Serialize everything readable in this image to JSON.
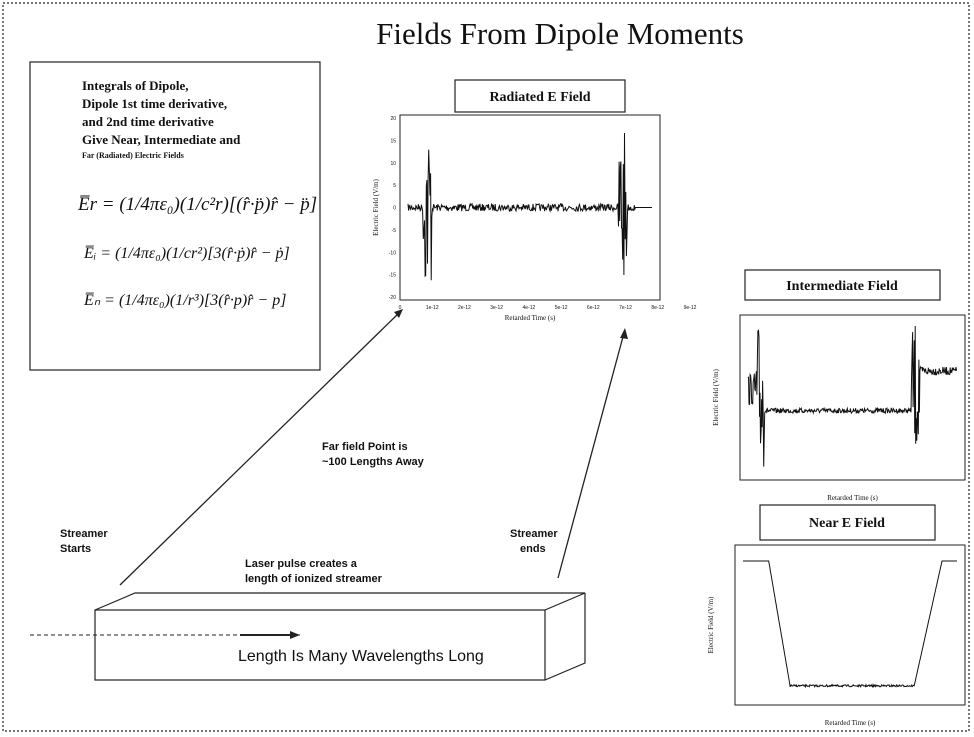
{
  "title": "Fields From Dipole Moments",
  "box": {
    "lines": [
      "Integrals of Dipole,",
      "Dipole 1st time derivative,",
      "and 2nd time derivative",
      "Give  Near, Intermediate and"
    ],
    "small": "Far (Radiated) Electric Fields",
    "equations": [
      "E̅r = (1/4πε₀)(1/c²r)[(r̂·p̈)r̂ − p̈]",
      "E̅ᵢ = (1/4πε₀)(1/cr²)[3(r̂·ṗ)r̂ − ṗ]",
      "E̅ₙ = (1/4πε₀)(1/r³)[3(r̂·p)r̂ − p]"
    ]
  },
  "radiated": {
    "title": "Radiated E Field",
    "ylabel": "Electric Field (V/m)",
    "xlabel": "Retarded Time (s)",
    "yticks": [
      "20",
      "15",
      "10",
      "5",
      "0",
      "-5",
      "-10",
      "-15",
      "-20"
    ],
    "xticks": [
      "0",
      "1e-12",
      "2e-12",
      "3e-12",
      "4e-12",
      "5e-12",
      "6e-12",
      "7e-12",
      "8e-12",
      "9e-12"
    ]
  },
  "intermediate": {
    "title": "Intermediate Field",
    "ylabel": "Electric Field (V/m)",
    "xlabel": "Retarded Time (s)"
  },
  "near": {
    "title": "Near E Field",
    "ylabel": "Electric Field (V/m)",
    "xlabel": "Retarded Time (s)"
  },
  "annotations": {
    "far1": "Far field Point is",
    "far2": "~100 Lengths Away",
    "start1": "Streamer",
    "start2": "Starts",
    "end1": "Streamer",
    "end2": "ends",
    "laser1": "Laser pulse creates a",
    "laser2": "length of ionized streamer",
    "length": "Length Is Many Wavelengths Long"
  }
}
